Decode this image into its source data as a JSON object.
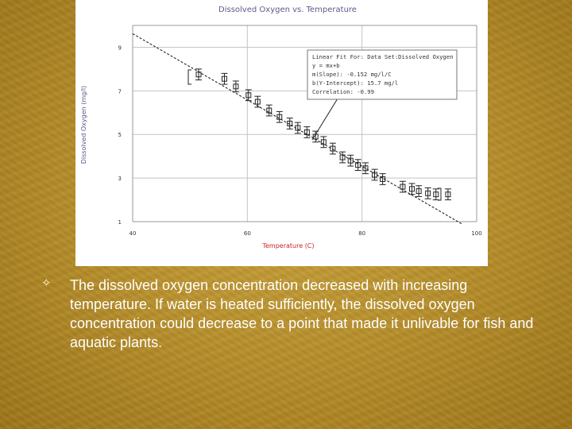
{
  "slide": {
    "caption": "The dissolved oxygen concentration decreased with increasing temperature. If water is heated sufficiently, the dissolved oxygen concentration could decrease to a point that made it unlivable for fish and aquatic plants.",
    "bullet_icon": "four-point-star-icon",
    "background_color": "#b8902c",
    "text_color": "#ffffff"
  },
  "chart_data": {
    "type": "scatter",
    "title": "Dissolved Oxygen vs. Temperature",
    "xlabel": "Temperature (C)",
    "ylabel": "Dissolved Oxygen (mg/l)",
    "xlim": [
      40,
      100
    ],
    "ylim": [
      1,
      10
    ],
    "x_ticks": [
      "40",
      "60",
      "80",
      "100"
    ],
    "y_ticks": [
      "1",
      "3",
      "5",
      "7",
      "9"
    ],
    "grid": true,
    "series": [
      {
        "name": "Dissolved Oxygen",
        "marker": "square-with-error-bars",
        "color": "#222222",
        "error_bar": 0.25,
        "x": [
          51.5,
          56.0,
          58.0,
          60.2,
          61.8,
          63.8,
          65.6,
          67.4,
          68.8,
          70.4,
          71.9,
          73.3,
          74.9,
          76.6,
          78.0,
          79.3,
          80.6,
          82.2,
          83.6,
          87.1,
          88.7,
          89.9,
          91.5,
          92.9,
          95.0
        ],
        "y": [
          7.75,
          7.55,
          7.2,
          6.8,
          6.5,
          6.1,
          5.8,
          5.5,
          5.3,
          5.1,
          4.9,
          4.65,
          4.35,
          3.95,
          3.8,
          3.6,
          3.45,
          3.15,
          2.95,
          2.6,
          2.5,
          2.4,
          2.3,
          2.25,
          2.25
        ]
      }
    ],
    "fit": {
      "x": [
        40,
        97.4
      ],
      "y": [
        9.62,
        0.9
      ]
    },
    "annotation": {
      "lines": [
        "Linear Fit For: Data Set:Dissolved Oxygen",
        "y = mx+b",
        "m(Slope): -0.152 mg/l/C",
        "b(Y-Intercept): 15.7 mg/l",
        "Correlation: -0.99"
      ]
    }
  }
}
